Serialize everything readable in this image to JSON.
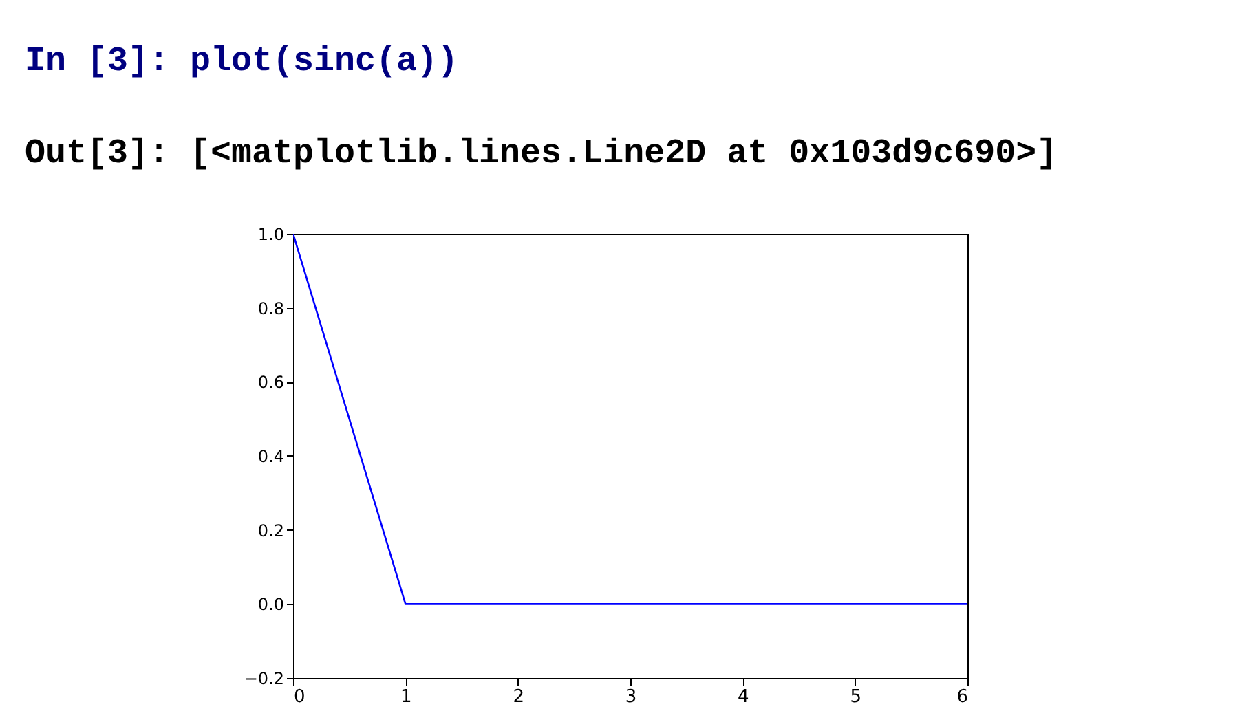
{
  "chart_data": {
    "type": "line",
    "x": [
      0,
      1,
      2,
      3,
      4,
      5,
      6
    ],
    "series": [
      {
        "color": "#0000ff",
        "values": [
          1.0,
          0.0,
          0.0,
          0.0,
          0.0,
          0.0,
          0.0
        ]
      }
    ],
    "xlim": [
      0,
      6
    ],
    "xticks": [
      0,
      1,
      2,
      3,
      4,
      5,
      6
    ],
    "ylim": [
      -0.2,
      1.0
    ],
    "yticks": [
      {
        "value": -0.2,
        "label": "−0.2"
      },
      {
        "value": 0.0,
        "label": "0.0"
      },
      {
        "value": 0.2,
        "label": "0.2"
      },
      {
        "value": 0.4,
        "label": "0.4"
      },
      {
        "value": 0.6,
        "label": "0.6"
      },
      {
        "value": 0.8,
        "label": "0.8"
      },
      {
        "value": 1.0,
        "label": "1.0"
      }
    ],
    "grid": false,
    "marker": "none",
    "line_style": "solid",
    "annotations": [
      "In [3]: plot(sinc(a))",
      "Out[3]: [<matplotlib.lines.Line2D at 0x103d9c690>]"
    ]
  }
}
